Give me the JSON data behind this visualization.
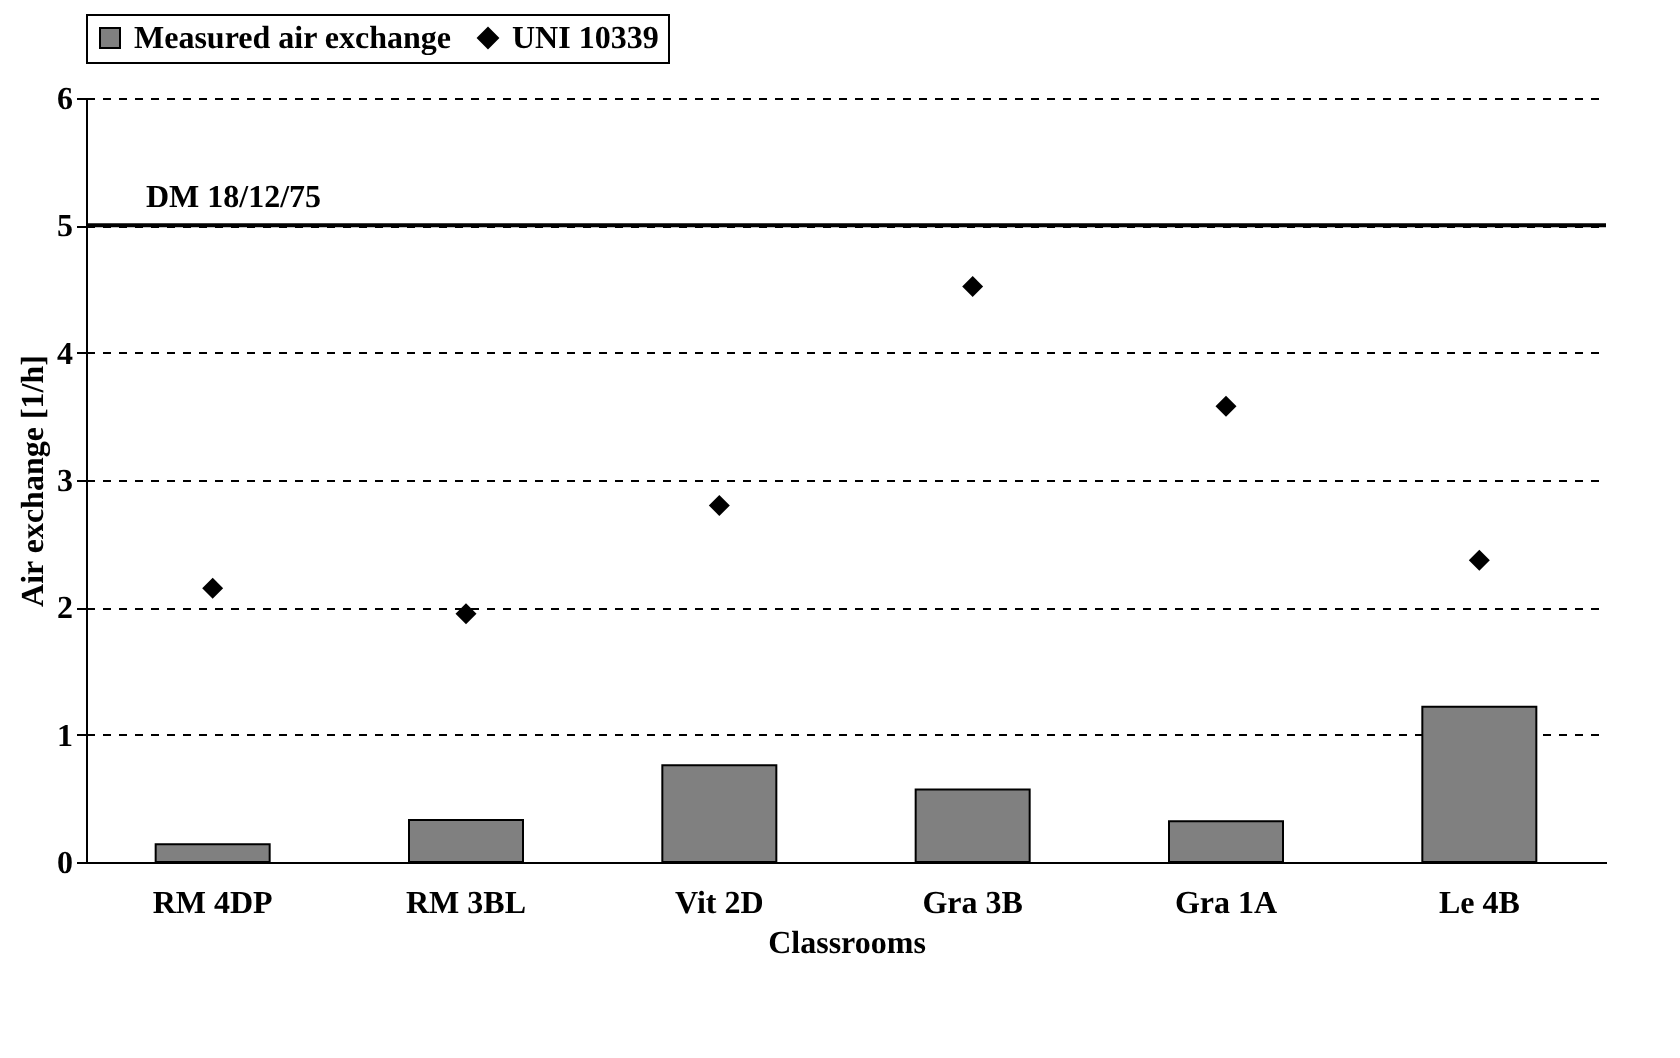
{
  "chart_data": {
    "type": "bar",
    "xlabel": "Classrooms",
    "ylabel": "Air exchange [1/h]",
    "categories": [
      "RM 4DP",
      "RM 3BL",
      "Vit 2D",
      "Gra 3B",
      "Gra 1A",
      "Le 4B"
    ],
    "series": [
      {
        "name": "Measured air exchange",
        "color": "#808080",
        "values": [
          0.14,
          0.33,
          0.76,
          0.57,
          0.32,
          1.22
        ]
      },
      {
        "name": "UNI 10339",
        "type": "scatter",
        "marker": "diamond",
        "color": "#000000",
        "values": [
          2.15,
          1.95,
          2.8,
          4.52,
          3.58,
          2.37
        ]
      }
    ],
    "ylim": [
      0,
      6
    ],
    "yticks": [
      0,
      1,
      2,
      3,
      4,
      5,
      6
    ],
    "grid": "y",
    "legend": "top",
    "ref_lines": [
      {
        "axis": "y",
        "value": 5,
        "label": "DM 18/12/75",
        "color": "#000000",
        "line_style": "solid"
      }
    ]
  }
}
